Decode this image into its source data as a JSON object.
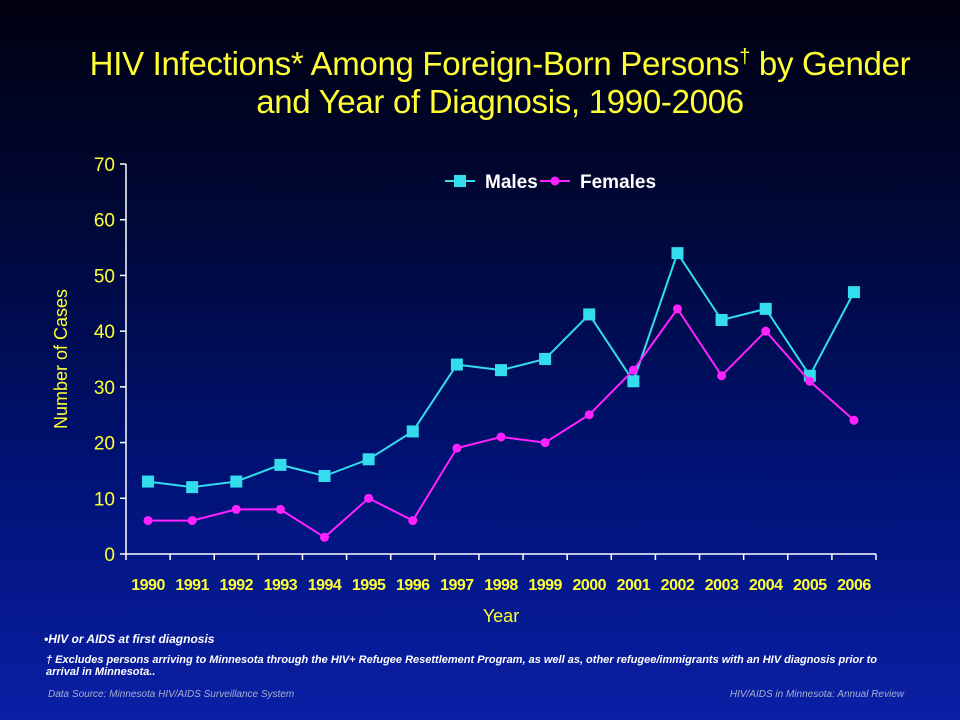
{
  "title": {
    "line1_main": "HIV Infections* Among Foreign-Born Persons",
    "line1_dagger": "†",
    "line1_end": " by Gender",
    "line2": "and Year of Diagnosis, 1990-2006"
  },
  "notes": {
    "note1": "•HIV or AIDS at first diagnosis",
    "note2": "† Excludes persons arriving to Minnesota through the HIV+ Refugee Resettlement Program, as well as, other refugee/immigrants with an HIV diagnosis prior to arrival in Minnesota.."
  },
  "footer": {
    "left_prefix": "Data Source: ",
    "left_source": "Minnesota HIV/AIDS Surveillance System",
    "right": "HIV/AIDS in Minnesota: Annual Review"
  },
  "chart_data": {
    "type": "line",
    "xlabel": "Year",
    "ylabel": "Number of Cases",
    "ylim": [
      0,
      70
    ],
    "yticks": [
      0,
      10,
      20,
      30,
      40,
      50,
      60,
      70
    ],
    "grid": false,
    "legend_position": "top-center",
    "categories": [
      "1990",
      "1991",
      "1992",
      "1993",
      "1994",
      "1995",
      "1996",
      "1997",
      "1998",
      "1999",
      "2000",
      "2001",
      "2002",
      "2003",
      "2004",
      "2005",
      "2006"
    ],
    "series": [
      {
        "name": "Males",
        "color": "#33ddee",
        "marker": "square",
        "values": [
          13,
          12,
          13,
          16,
          14,
          17,
          22,
          34,
          33,
          35,
          43,
          31,
          54,
          42,
          44,
          32,
          47
        ]
      },
      {
        "name": "Females",
        "color": "#ff22ff",
        "marker": "circle",
        "values": [
          6,
          6,
          8,
          8,
          3,
          10,
          6,
          19,
          21,
          20,
          25,
          33,
          44,
          32,
          40,
          31,
          24
        ]
      }
    ]
  },
  "colors": {
    "title": "#ffff33",
    "axis": "#ffffff",
    "tick_labels": "#ffff33"
  }
}
